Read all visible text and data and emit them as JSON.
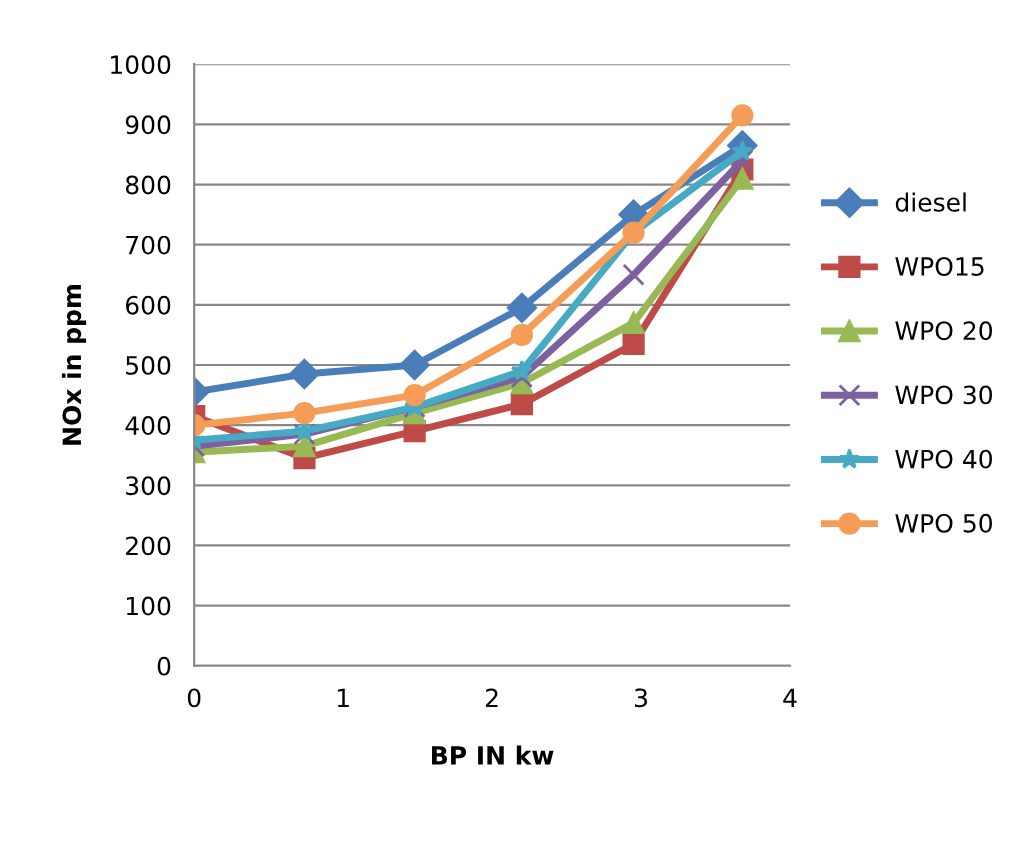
{
  "chart_data": {
    "type": "line",
    "xlabel": "BP IN kw",
    "ylabel": "NOx in ppm",
    "x": [
      0,
      0.74,
      1.48,
      2.2,
      2.95,
      3.68
    ],
    "xlim": [
      0,
      4
    ],
    "xticks": [
      0,
      1,
      2,
      3,
      4
    ],
    "ylim": [
      0,
      1000
    ],
    "yticks": [
      0,
      100,
      200,
      300,
      400,
      500,
      600,
      700,
      800,
      900,
      1000
    ],
    "grid": "y",
    "legend": "right",
    "series": [
      {
        "name": "diesel",
        "color": "#4a7ebb",
        "marker": "diamond",
        "values": [
          455,
          485,
          500,
          595,
          750,
          865
        ]
      },
      {
        "name": "WPO15",
        "color": "#be4b48",
        "marker": "square",
        "values": [
          415,
          345,
          390,
          435,
          535,
          825
        ]
      },
      {
        "name": "WPO 20",
        "color": "#98b954",
        "marker": "triangle",
        "values": [
          355,
          365,
          420,
          470,
          570,
          810
        ]
      },
      {
        "name": "WPO 30",
        "color": "#7d60a0",
        "marker": "cross",
        "values": [
          365,
          385,
          430,
          480,
          650,
          840
        ]
      },
      {
        "name": "WPO 40",
        "color": "#46aac5",
        "marker": "star",
        "values": [
          375,
          390,
          430,
          490,
          720,
          855
        ]
      },
      {
        "name": "WPO 50",
        "color": "#f59d56",
        "marker": "circle",
        "values": [
          400,
          420,
          450,
          550,
          720,
          915
        ]
      }
    ]
  }
}
